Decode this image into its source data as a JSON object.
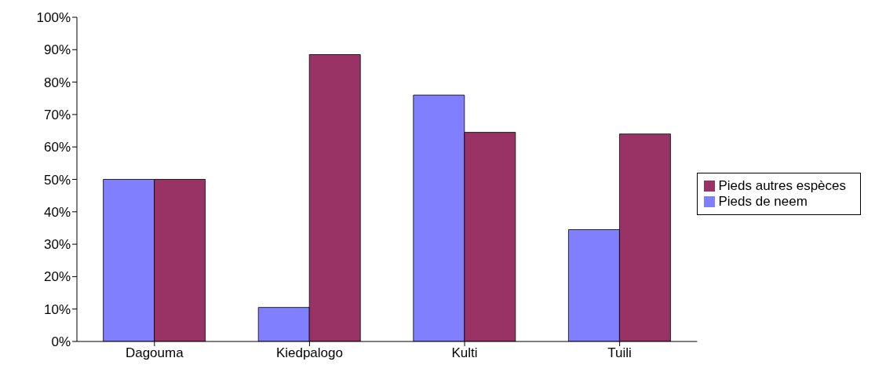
{
  "chart_data": {
    "type": "bar",
    "categories": [
      "Dagouma",
      "Kiedpalogo",
      "Kulti",
      "Tuili"
    ],
    "series": [
      {
        "name": "Pieds de neem",
        "color": "#8080ff",
        "values": [
          50,
          10.5,
          76,
          34.5
        ]
      },
      {
        "name": "Pieds autres espèces",
        "color": "#993366",
        "values": [
          50,
          88.5,
          64.5,
          64
        ]
      }
    ],
    "ylim": [
      0,
      100
    ],
    "yticks": [
      {
        "value": 0,
        "label": "0%"
      },
      {
        "value": 10,
        "label": "10%"
      },
      {
        "value": 20,
        "label": "20%"
      },
      {
        "value": 30,
        "label": "30%"
      },
      {
        "value": 40,
        "label": "40%"
      },
      {
        "value": 50,
        "label": "50%"
      },
      {
        "value": 60,
        "label": "60%"
      },
      {
        "value": 70,
        "label": "70%"
      },
      {
        "value": 80,
        "label": "80%"
      },
      {
        "value": 90,
        "label": "90%"
      },
      {
        "value": 100,
        "label": "100%"
      }
    ],
    "grid": false,
    "legend": "right"
  }
}
